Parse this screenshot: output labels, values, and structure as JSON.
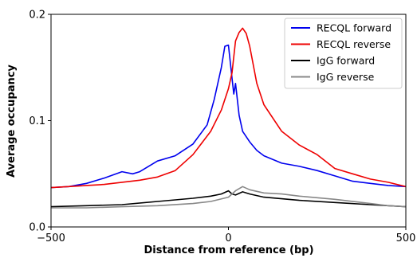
{
  "chart_data": {
    "type": "line",
    "xlabel": "Distance from reference (bp)",
    "ylabel": "Average occupancy",
    "xlim": [
      -500,
      500
    ],
    "ylim": [
      0,
      0.2
    ],
    "xticks": [
      -500,
      0,
      500
    ],
    "xtick_labels": [
      "−500",
      "0",
      "500"
    ],
    "yticks": [
      0,
      0.1,
      0.2
    ],
    "ytick_labels": [
      "0.0",
      "0.1",
      "0.2"
    ],
    "grid": false,
    "legend_position": "top-right",
    "series": [
      {
        "name": "RECQL forward",
        "color": "#0000ee",
        "x": [
          -500,
          -450,
          -400,
          -350,
          -300,
          -270,
          -250,
          -200,
          -150,
          -100,
          -60,
          -40,
          -20,
          -10,
          0,
          10,
          15,
          20,
          30,
          40,
          60,
          80,
          100,
          150,
          200,
          250,
          300,
          350,
          400,
          450,
          500
        ],
        "y": [
          0.037,
          0.038,
          0.041,
          0.046,
          0.052,
          0.05,
          0.052,
          0.062,
          0.067,
          0.078,
          0.096,
          0.12,
          0.15,
          0.17,
          0.171,
          0.14,
          0.125,
          0.135,
          0.105,
          0.09,
          0.08,
          0.072,
          0.067,
          0.06,
          0.057,
          0.053,
          0.048,
          0.043,
          0.041,
          0.039,
          0.038
        ]
      },
      {
        "name": "RECQL reverse",
        "color": "#ee0000",
        "x": [
          -500,
          -450,
          -400,
          -350,
          -300,
          -250,
          -200,
          -150,
          -100,
          -50,
          -20,
          0,
          10,
          20,
          30,
          40,
          50,
          60,
          80,
          100,
          150,
          200,
          250,
          300,
          350,
          400,
          450,
          500
        ],
        "y": [
          0.037,
          0.038,
          0.039,
          0.04,
          0.042,
          0.044,
          0.047,
          0.053,
          0.068,
          0.09,
          0.11,
          0.13,
          0.145,
          0.175,
          0.183,
          0.187,
          0.182,
          0.17,
          0.135,
          0.115,
          0.09,
          0.077,
          0.068,
          0.055,
          0.05,
          0.045,
          0.042,
          0.038
        ]
      },
      {
        "name": "IgG forward",
        "color": "#000000",
        "x": [
          -500,
          -400,
          -300,
          -200,
          -100,
          -50,
          -20,
          0,
          10,
          20,
          40,
          60,
          100,
          200,
          300,
          400,
          450,
          500
        ],
        "y": [
          0.019,
          0.02,
          0.021,
          0.024,
          0.027,
          0.029,
          0.031,
          0.034,
          0.031,
          0.03,
          0.033,
          0.031,
          0.028,
          0.025,
          0.023,
          0.021,
          0.02,
          0.019
        ]
      },
      {
        "name": "IgG reverse",
        "color": "#888888",
        "x": [
          -500,
          -400,
          -300,
          -200,
          -100,
          -50,
          0,
          20,
          40,
          60,
          100,
          150,
          200,
          300,
          400,
          450,
          500
        ],
        "y": [
          0.018,
          0.018,
          0.019,
          0.02,
          0.022,
          0.024,
          0.028,
          0.034,
          0.038,
          0.035,
          0.032,
          0.031,
          0.029,
          0.026,
          0.022,
          0.02,
          0.019
        ]
      }
    ]
  }
}
